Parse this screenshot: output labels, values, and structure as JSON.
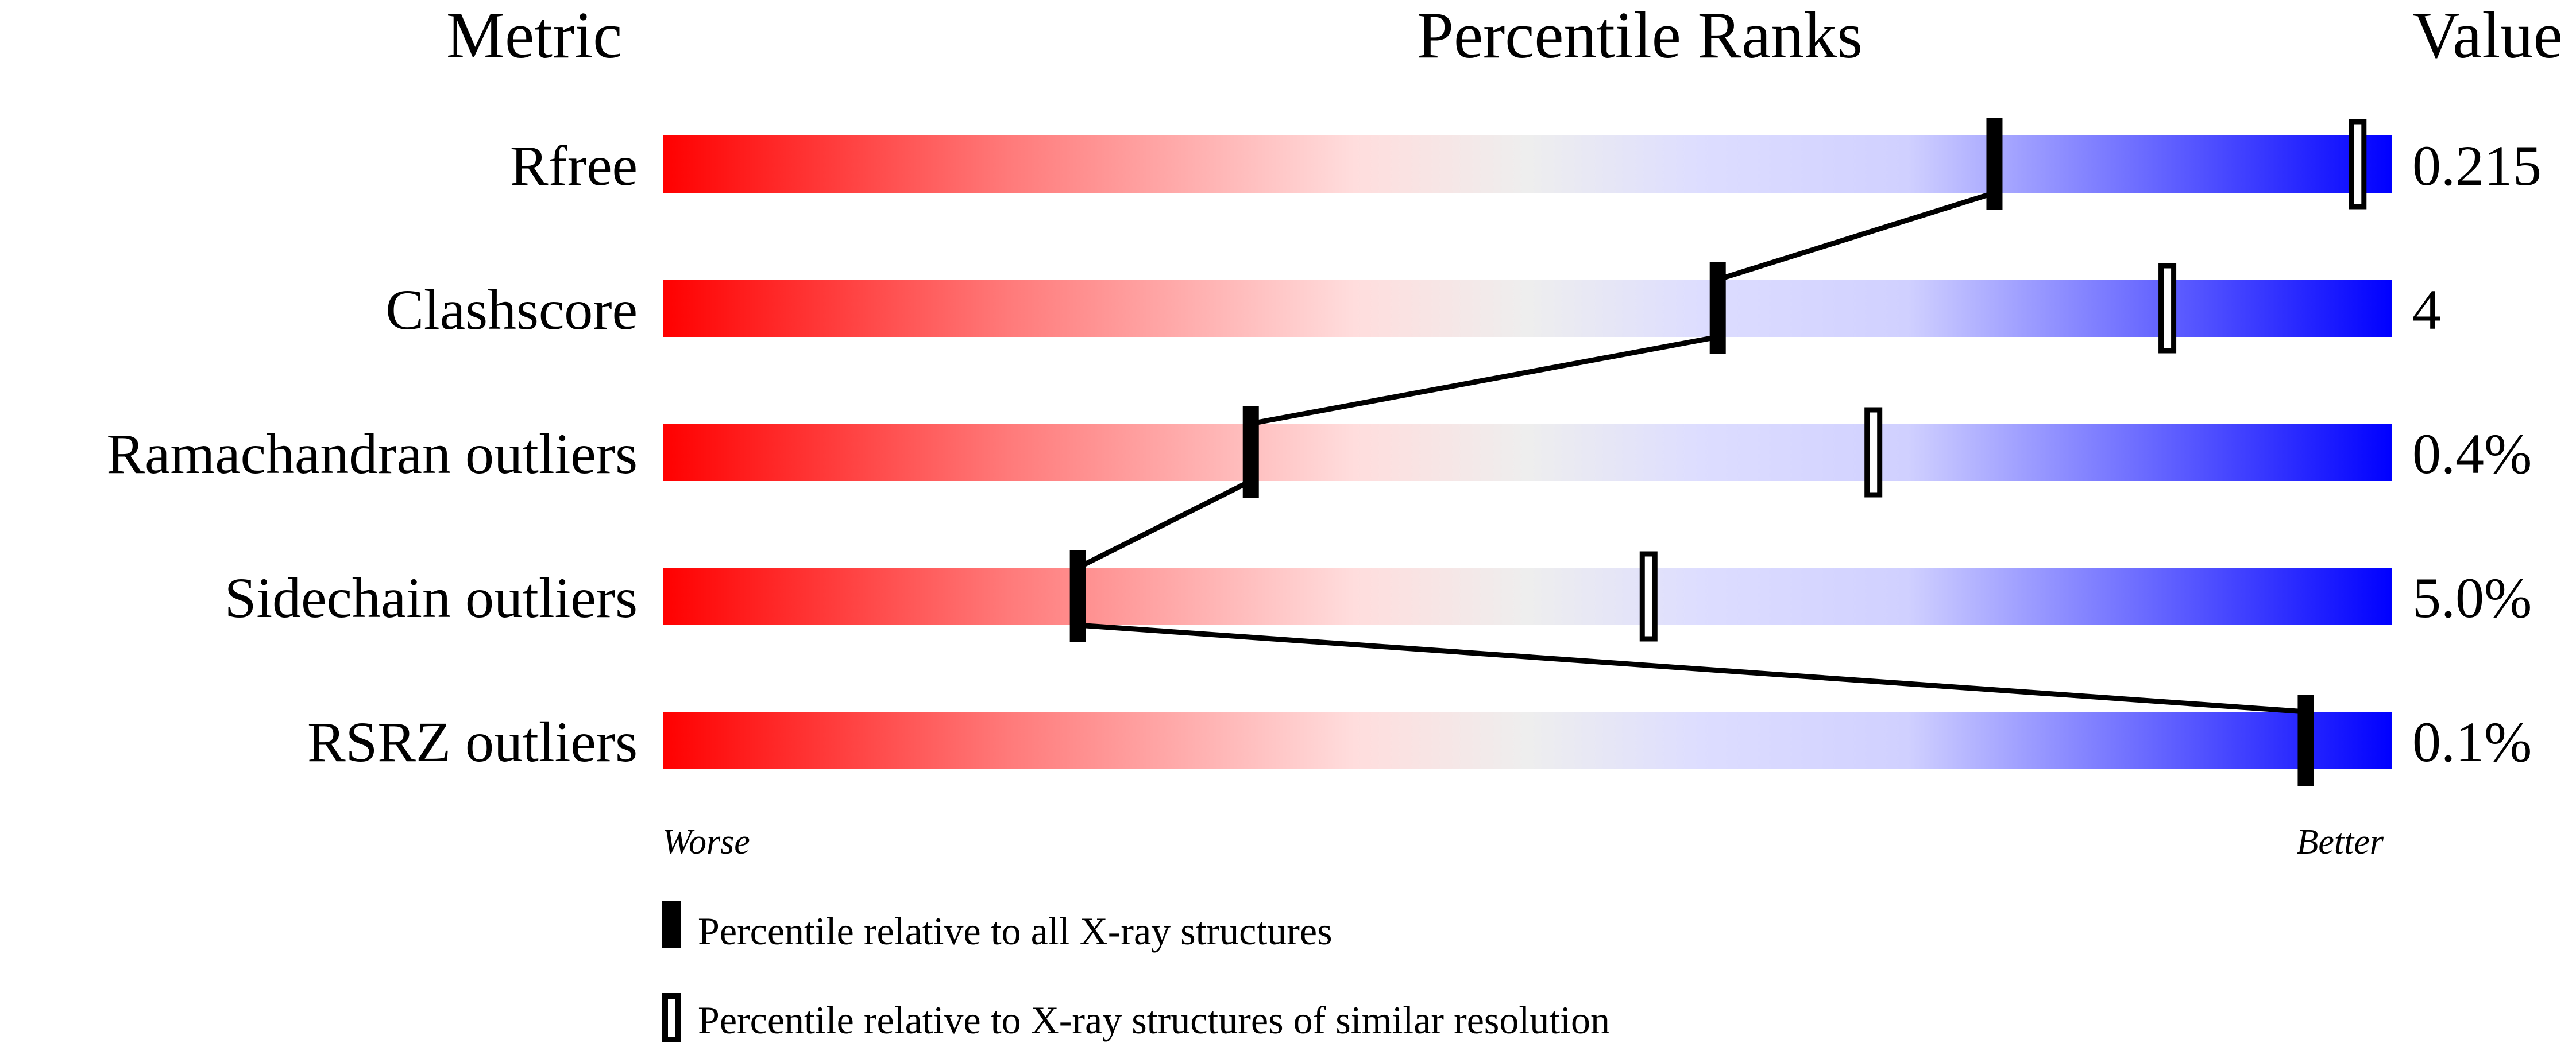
{
  "chart_data": {
    "type": "bar",
    "headers": {
      "metric": "Metric",
      "ranks": "Percentile Ranks",
      "value": "Value"
    },
    "metrics": [
      {
        "name": "Rfree",
        "value": "0.215",
        "percentile_all": 77,
        "percentile_similar": 98
      },
      {
        "name": "Clashscore",
        "value": "4",
        "percentile_all": 61,
        "percentile_similar": 87
      },
      {
        "name": "Ramachandran outliers",
        "value": "0.4%",
        "percentile_all": 34,
        "percentile_similar": 70
      },
      {
        "name": "Sidechain outliers",
        "value": "5.0%",
        "percentile_all": 24,
        "percentile_similar": 57
      },
      {
        "name": "RSRZ outliers",
        "value": "0.1%",
        "percentile_all": 95,
        "percentile_similar": null
      }
    ],
    "xlim": [
      0,
      100
    ],
    "axis_labels": {
      "left": "Worse",
      "right": "Better"
    },
    "legend": {
      "all": "Percentile relative to all X-ray structures",
      "similar": "Percentile relative to X-ray structures of similar resolution"
    },
    "gradient_colors": [
      "#ff0000",
      "#ffdddd",
      "#eeeeee",
      "#ddddff",
      "#0000ff"
    ]
  }
}
